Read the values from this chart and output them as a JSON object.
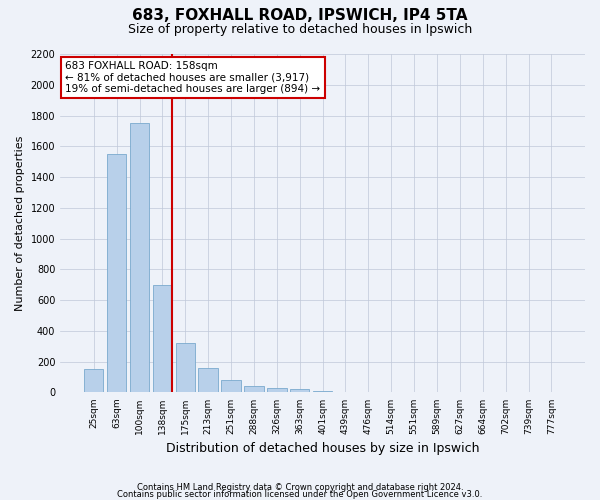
{
  "title1": "683, FOXHALL ROAD, IPSWICH, IP4 5TA",
  "title2": "Size of property relative to detached houses in Ipswich",
  "xlabel": "Distribution of detached houses by size in Ipswich",
  "ylabel": "Number of detached properties",
  "categories": [
    "25sqm",
    "63sqm",
    "100sqm",
    "138sqm",
    "175sqm",
    "213sqm",
    "251sqm",
    "288sqm",
    "326sqm",
    "363sqm",
    "401sqm",
    "439sqm",
    "476sqm",
    "514sqm",
    "551sqm",
    "589sqm",
    "627sqm",
    "664sqm",
    "702sqm",
    "739sqm",
    "777sqm"
  ],
  "values": [
    150,
    1550,
    1750,
    700,
    320,
    160,
    80,
    42,
    26,
    20,
    10,
    5,
    3,
    2,
    1,
    1,
    1,
    0,
    0,
    0,
    0
  ],
  "bar_color": "#b8d0ea",
  "bar_edge_color": "#7aaace",
  "vline_color": "#cc0000",
  "annotation_text": "683 FOXHALL ROAD: 158sqm\n← 81% of detached houses are smaller (3,917)\n19% of semi-detached houses are larger (894) →",
  "annotation_box_color": "#ffffff",
  "annotation_box_edge_color": "#cc0000",
  "ylim": [
    0,
    2200
  ],
  "yticks": [
    0,
    200,
    400,
    600,
    800,
    1000,
    1200,
    1400,
    1600,
    1800,
    2000,
    2200
  ],
  "footer1": "Contains HM Land Registry data © Crown copyright and database right 2024.",
  "footer2": "Contains public sector information licensed under the Open Government Licence v3.0.",
  "bg_color": "#eef2f9",
  "title1_fontsize": 11,
  "title2_fontsize": 9,
  "ylabel_fontsize": 8,
  "xlabel_fontsize": 9
}
